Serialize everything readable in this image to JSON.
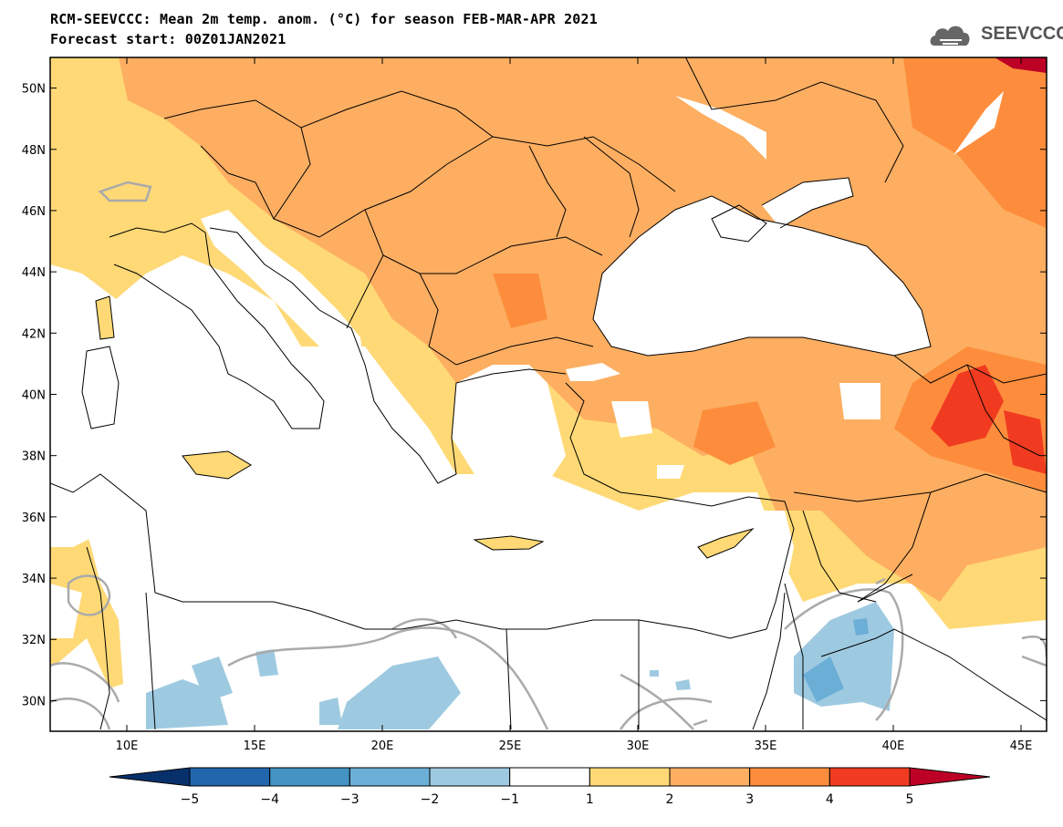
{
  "header": {
    "title": "RCM-SEEVCCC: Mean 2m temp. anom. (°C) for season FEB-MAR-APR 2021",
    "subtitle": "Forecast start: 00Z01JAN2021",
    "logo_text": "SEEVCCC"
  },
  "icons": {
    "logo": "cloud-icon"
  },
  "map": {
    "lon_range": [
      7,
      46
    ],
    "lat_range": [
      29,
      51
    ],
    "lat_ticks": [
      "50N",
      "48N",
      "46N",
      "44N",
      "42N",
      "40N",
      "38N",
      "36N",
      "34N",
      "32N",
      "30N"
    ],
    "lon_ticks": [
      "10E",
      "15E",
      "20E",
      "25E",
      "30E",
      "35E",
      "40E",
      "45E"
    ]
  },
  "colorbar": {
    "labels": [
      "-5",
      "-4",
      "-3",
      "-2",
      "-1",
      "1",
      "2",
      "3",
      "4",
      "5"
    ],
    "colors": [
      "#08306b",
      "#2166ac",
      "#4393c3",
      "#6baed6",
      "#9ecae1",
      "#ffffff",
      "#fed976",
      "#fdae61",
      "#fd8d3c",
      "#f03b20",
      "#bd0026"
    ]
  }
}
